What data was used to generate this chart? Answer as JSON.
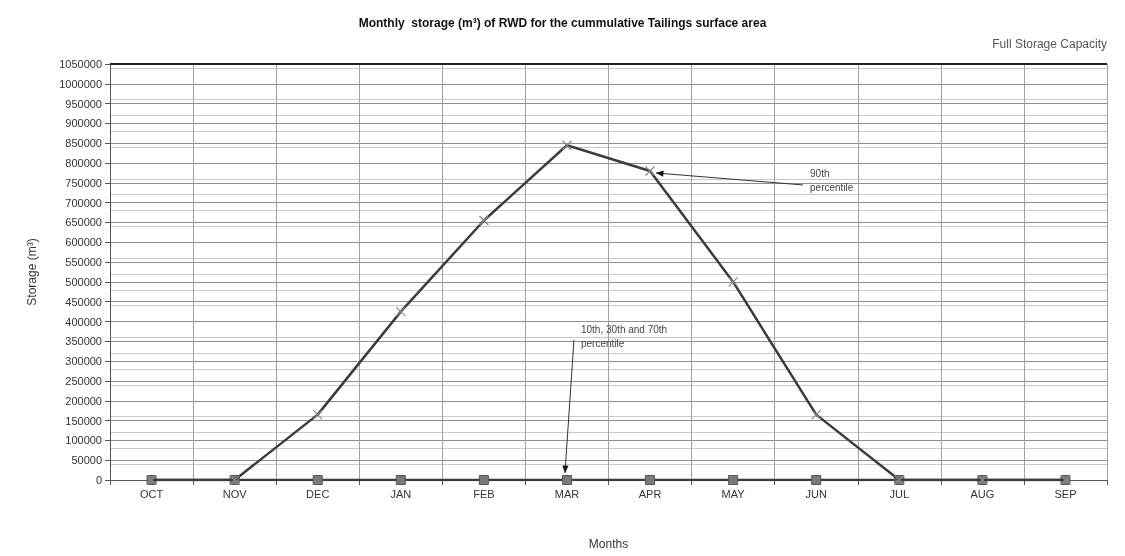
{
  "chart_data": {
    "type": "line",
    "title": "Monthly  storage (m³) of RWD for the cummulative Tailings surface area",
    "xlabel": "Months",
    "ylabel": "Storage (m³)",
    "categories": [
      "OCT",
      "NOV",
      "DEC",
      "JAN",
      "FEB",
      "MAR",
      "APR",
      "MAY",
      "JUN",
      "JUL",
      "AUG",
      "SEP"
    ],
    "series": [
      {
        "color": "#7a7a7a",
        "marker": "square",
        "values": [
          0,
          0,
          0,
          0,
          0,
          0,
          0,
          0,
          0,
          0,
          0,
          0
        ]
      },
      {
        "color": "#3c3c3c",
        "marker": "cross",
        "values": [
          0,
          0,
          165000,
          425000,
          655000,
          845000,
          780000,
          500000,
          165000,
          0,
          0,
          0
        ]
      }
    ],
    "ylim": [
      0,
      1050000
    ],
    "yticks": [
      0,
      50000,
      100000,
      150000,
      200000,
      250000,
      300000,
      350000,
      400000,
      450000,
      500000,
      550000,
      600000,
      650000,
      700000,
      750000,
      800000,
      850000,
      900000,
      950000,
      1000000,
      1050000
    ],
    "ref_lines": [
      {
        "axis": "y",
        "value": 1050000,
        "label": "Full Storage Capacity",
        "color": "#222222"
      }
    ],
    "annotations": [
      {
        "text": "10th, 30th and 70th percentile",
        "x": "MAR",
        "y": 0
      },
      {
        "text": "90th percentile",
        "x": "APR",
        "y": 780000
      }
    ],
    "grid": true,
    "line_style": "solid"
  }
}
